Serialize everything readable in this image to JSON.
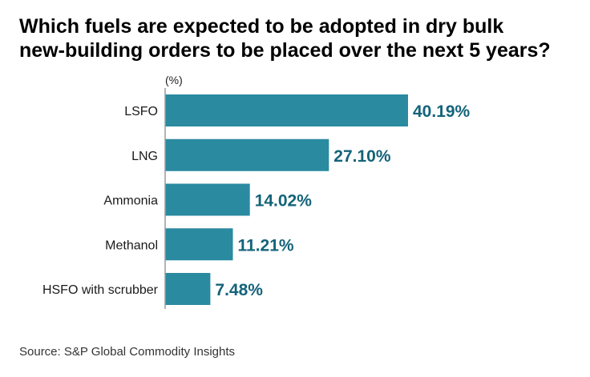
{
  "title_line1": "Which fuels are expected to be adopted in dry bulk",
  "title_line2": "new-building orders to be placed over the next 5 years?",
  "unit_label": "(%)",
  "source": "Source: S&P Global Commodity Insights",
  "colors": {
    "bar": "#2a8aa0",
    "value_text": "#14637a",
    "axis": "#9a9a9a"
  },
  "chart_data": {
    "type": "bar",
    "orientation": "horizontal",
    "categories": [
      "LSFO",
      "LNG",
      "Ammonia",
      "Methanol",
      "HSFO with scrubber"
    ],
    "values": [
      40.19,
      27.1,
      14.02,
      11.21,
      7.48
    ],
    "value_labels": [
      "40.19%",
      "27.10%",
      "14.02%",
      "11.21%",
      "7.48%"
    ],
    "ylabel": "(%)",
    "xlim": [
      0,
      40.19
    ],
    "grid": false,
    "legend": "none"
  }
}
